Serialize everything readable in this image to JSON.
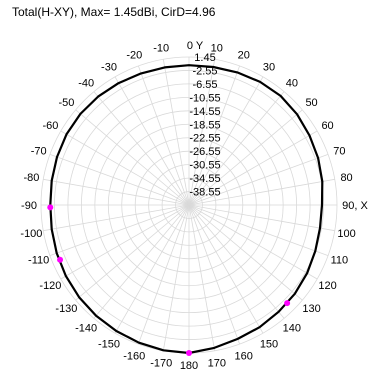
{
  "chart_data": {
    "type": "polar",
    "title": "Total(H-XY), Max= 1.45dBi, CirD=4.96",
    "r_ticks": [
      "1.45",
      "-2.55",
      "-6.55",
      "-10.55",
      "-14.55",
      "-18.55",
      "-22.55",
      "-26.55",
      "-30.55",
      "-34.55",
      "-38.55"
    ],
    "r_range": [
      -42.55,
      1.45
    ],
    "angle_ticks": [
      {
        "deg": 0,
        "label": "0"
      },
      {
        "deg": 10,
        "label": "10"
      },
      {
        "deg": 20,
        "label": "20"
      },
      {
        "deg": 30,
        "label": "30"
      },
      {
        "deg": 40,
        "label": "40"
      },
      {
        "deg": 50,
        "label": "50"
      },
      {
        "deg": 60,
        "label": "60"
      },
      {
        "deg": 70,
        "label": "70"
      },
      {
        "deg": 80,
        "label": "80"
      },
      {
        "deg": 90,
        "label": "90"
      },
      {
        "deg": 100,
        "label": "100"
      },
      {
        "deg": 110,
        "label": "110"
      },
      {
        "deg": 120,
        "label": "120"
      },
      {
        "deg": 130,
        "label": "130"
      },
      {
        "deg": 140,
        "label": "140"
      },
      {
        "deg": 150,
        "label": "150"
      },
      {
        "deg": 160,
        "label": "160"
      },
      {
        "deg": 170,
        "label": "170"
      },
      {
        "deg": 180,
        "label": "180"
      },
      {
        "deg": -10,
        "label": "-10"
      },
      {
        "deg": -20,
        "label": "-20"
      },
      {
        "deg": -30,
        "label": "-30"
      },
      {
        "deg": -40,
        "label": "-40"
      },
      {
        "deg": -50,
        "label": "-50"
      },
      {
        "deg": -60,
        "label": "-60"
      },
      {
        "deg": -70,
        "label": "-70"
      },
      {
        "deg": -80,
        "label": "-80"
      },
      {
        "deg": -90,
        "label": "-90"
      },
      {
        "deg": -100,
        "label": "-100"
      },
      {
        "deg": -110,
        "label": "-110"
      },
      {
        "deg": -120,
        "label": "-120"
      },
      {
        "deg": -130,
        "label": "-130"
      },
      {
        "deg": -140,
        "label": "-140"
      },
      {
        "deg": -150,
        "label": "-150"
      },
      {
        "deg": -160,
        "label": "-160"
      },
      {
        "deg": -170,
        "label": "-170"
      }
    ],
    "axis_labels": {
      "y": "Y",
      "x": "X"
    },
    "series": [
      {
        "color": "#000000",
        "theta": [
          0,
          10,
          20,
          30,
          40,
          50,
          60,
          70,
          80,
          90,
          100,
          110,
          120,
          130,
          140,
          150,
          160,
          170,
          180,
          -170,
          -160,
          -150,
          -140,
          -130,
          -120,
          -110,
          -100,
          -90,
          -80,
          -70,
          -60,
          -50,
          -40,
          -30,
          -20,
          -10
        ],
        "r": [
          -1.0,
          -0.9,
          -0.6,
          -0.3,
          -0.2,
          -0.6,
          -1.2,
          -1.7,
          -2.3,
          -3.0,
          -3.0,
          -2.6,
          -2.0,
          -1.5,
          -1.1,
          -0.6,
          -0.2,
          0.6,
          1.45,
          1.3,
          1.0,
          0.7,
          0.4,
          0.1,
          -0.3,
          -0.7,
          -1.1,
          -1.3,
          -1.1,
          -0.8,
          -0.5,
          -0.4,
          -0.5,
          -0.7,
          -0.9,
          -1.0
        ]
      }
    ],
    "markers": [
      {
        "theta": 180,
        "r": 1.45,
        "color": "#ff00ff"
      },
      {
        "theta": 135,
        "r": -1.3,
        "color": "#ff00ff"
      },
      {
        "theta": -91,
        "r": -1.3,
        "color": "#ff00ff"
      },
      {
        "theta": -113,
        "r": -0.9,
        "color": "#ff00ff"
      }
    ]
  }
}
